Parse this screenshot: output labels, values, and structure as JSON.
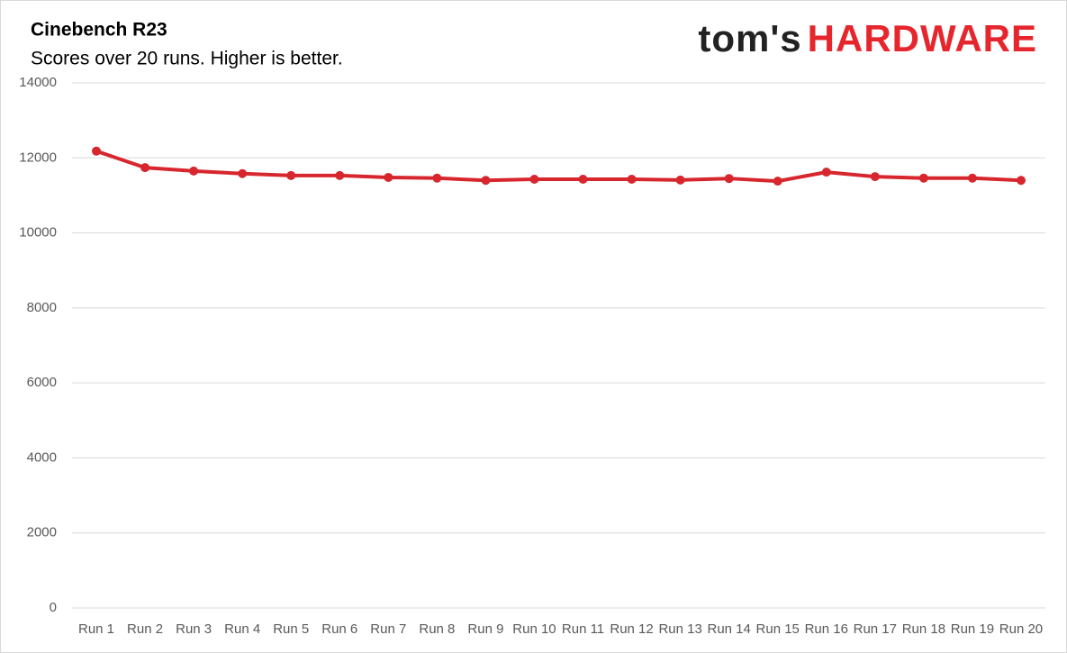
{
  "chart_data": {
    "type": "line",
    "title": "Cinebench R23",
    "subtitle": "Scores over 20 runs. Higher is better.",
    "logo": [
      "tom's",
      "HARDWARE"
    ],
    "categories": [
      "Run 1",
      "Run 2",
      "Run 3",
      "Run 4",
      "Run 5",
      "Run 6",
      "Run 7",
      "Run 8",
      "Run 9",
      "Run 10",
      "Run 11",
      "Run 12",
      "Run 13",
      "Run 14",
      "Run 15",
      "Run 16",
      "Run 17",
      "Run 18",
      "Run 19",
      "Run 20"
    ],
    "series": [
      {
        "name": "Cinebench R23",
        "color": "#d7262d",
        "values": [
          12180,
          11740,
          11650,
          11580,
          11530,
          11530,
          11480,
          11460,
          11400,
          11430,
          11430,
          11430,
          11410,
          11450,
          11380,
          11620,
          11500,
          11460,
          11460,
          11400
        ]
      }
    ],
    "ylim": [
      0,
      14000
    ],
    "yticks": [
      0,
      2000,
      4000,
      6000,
      8000,
      10000,
      12000,
      14000
    ],
    "grid": true,
    "legend": false
  }
}
